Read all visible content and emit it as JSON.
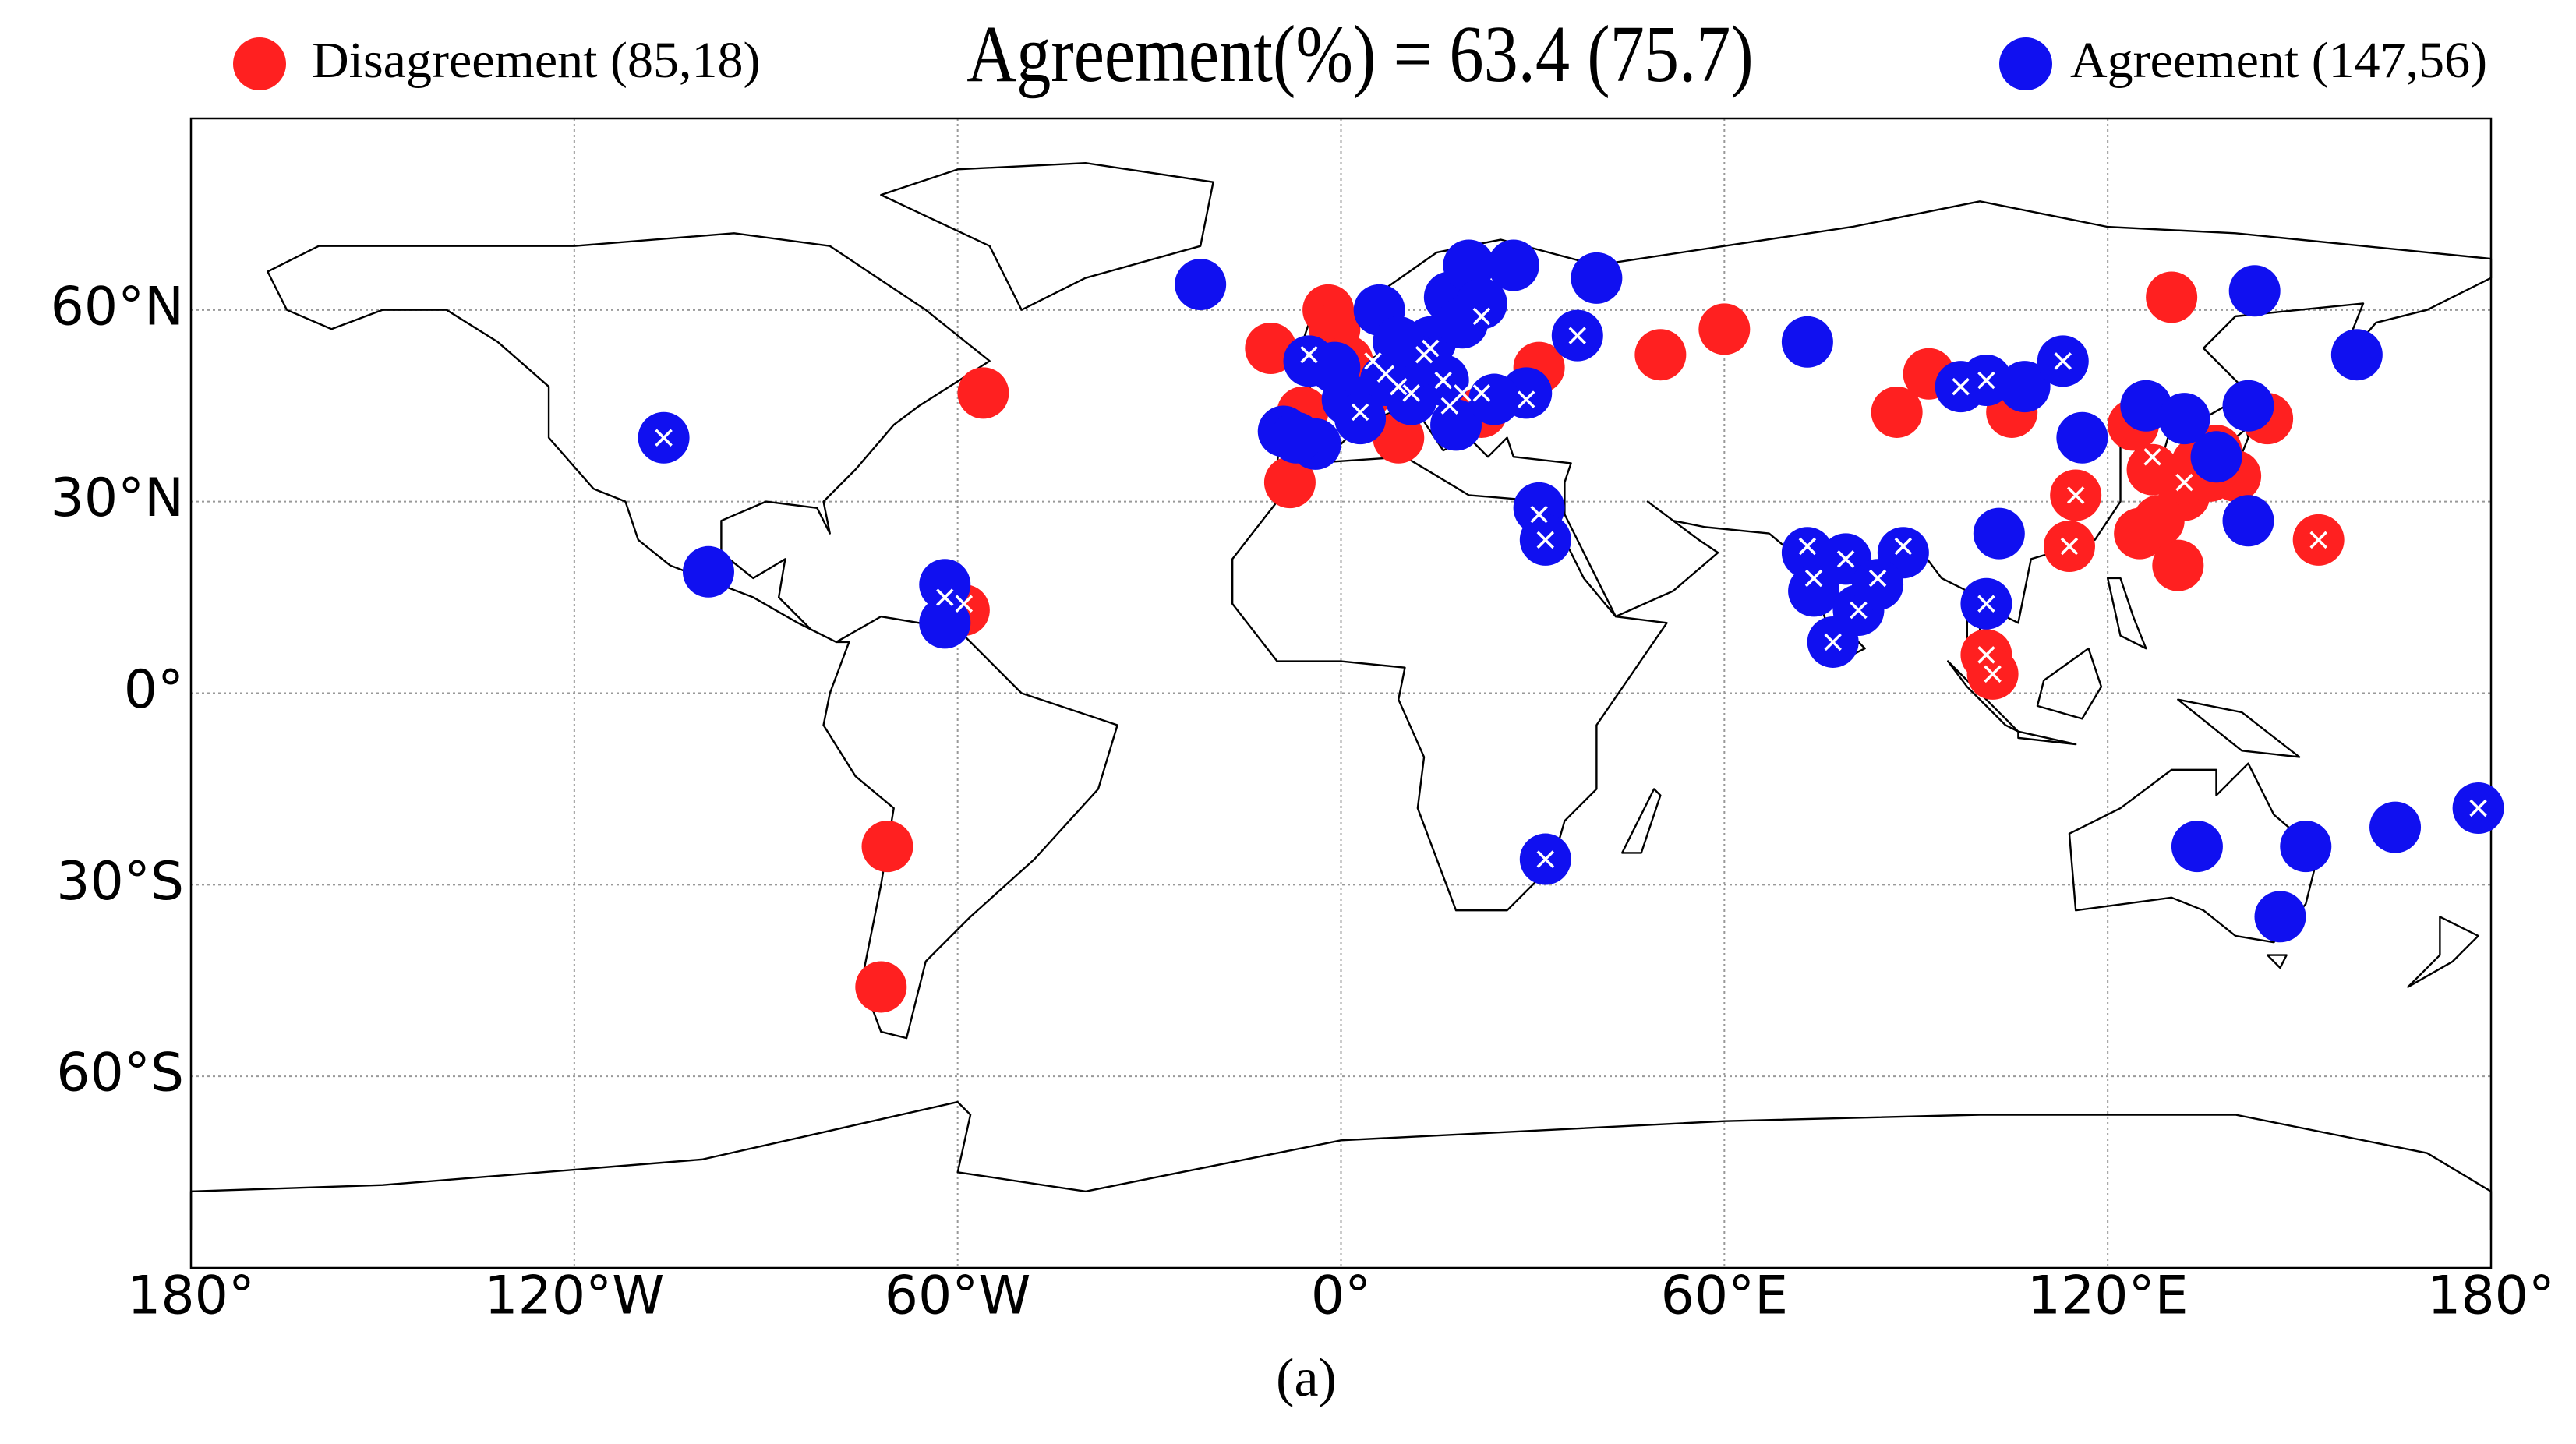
{
  "chart_data": {
    "type": "scatter",
    "title": "Agreement(%) = 63.4   (75.7)",
    "caption": "(a)",
    "xlim": [
      -180,
      180
    ],
    "ylim": [
      -90,
      90
    ],
    "xticks": [
      {
        "value": -180,
        "label": "180°"
      },
      {
        "value": -120,
        "label": "120°W"
      },
      {
        "value": -60,
        "label": "60°W"
      },
      {
        "value": 0,
        "label": "0°"
      },
      {
        "value": 60,
        "label": "60°E"
      },
      {
        "value": 120,
        "label": "120°E"
      },
      {
        "value": 180,
        "label": "180°"
      }
    ],
    "yticks": [
      {
        "value": 60,
        "label": "60°N"
      },
      {
        "value": 30,
        "label": "30°N"
      },
      {
        "value": 0,
        "label": "0°"
      },
      {
        "value": -30,
        "label": "30°S"
      },
      {
        "value": -60,
        "label": "60°S"
      }
    ],
    "grid": true,
    "series": [
      {
        "name": "Disagreement (85,18)",
        "color": "#ff2020",
        "marker": "circle",
        "x": [
          -56,
          -59,
          -71,
          -72,
          -8,
          -2,
          -1,
          -11,
          9,
          4,
          -6,
          1,
          22,
          31,
          50,
          60,
          87,
          92,
          105,
          115,
          114,
          101,
          102,
          130,
          124,
          127,
          132,
          125,
          131,
          137,
          145,
          153,
          140,
          136,
          128,
          134
        ],
        "y": [
          47,
          13,
          -24,
          -46,
          33,
          60,
          57,
          54,
          40,
          47,
          44,
          52,
          44,
          51,
          53,
          57,
          44,
          50,
          44,
          31,
          23,
          6,
          3,
          62,
          42,
          35,
          31,
          25,
          20,
          38,
          43,
          24,
          34,
          34,
          27,
          36
        ]
      },
      {
        "name": "Agreement (147,56)",
        "color": "#1010f0",
        "marker": "circle",
        "x": [
          -106,
          -99,
          -62,
          -62,
          -22,
          -5,
          -9,
          -4,
          6,
          14,
          17,
          20,
          22,
          27,
          7,
          11,
          16,
          18,
          29,
          31,
          32,
          37,
          40,
          32,
          73,
          73,
          74,
          79,
          81,
          77,
          88,
          84,
          97,
          101,
          107,
          113,
          116,
          103,
          101,
          126,
          132,
          143,
          142,
          142,
          137,
          159,
          134,
          151,
          147,
          165,
          178,
          1,
          -1,
          -7,
          3,
          12,
          24,
          19,
          9
        ],
        "y": [
          40,
          19,
          17,
          11,
          64,
          52,
          41,
          39,
          60,
          55,
          62,
          67,
          61,
          67,
          49,
          46,
          49,
          42,
          47,
          29,
          24,
          56,
          65,
          -26,
          55,
          22,
          16,
          21,
          13,
          8,
          22,
          17,
          48,
          49,
          48,
          52,
          40,
          25,
          14,
          45,
          43,
          63,
          27,
          45,
          37,
          53,
          -24,
          -24,
          -35,
          -21,
          -18,
          46,
          51,
          40,
          43,
          52,
          46,
          58,
          55
        ]
      },
      {
        "color": "#ffffff",
        "marker": "x",
        "x": [
          -59,
          22,
          115,
          114,
          101,
          102,
          127,
          132,
          153,
          -106,
          -62,
          -5,
          14,
          22,
          7,
          11,
          16,
          29,
          31,
          32,
          37,
          32,
          73,
          74,
          79,
          81,
          77,
          88,
          84,
          97,
          101,
          113,
          101,
          178,
          5,
          9,
          19,
          3,
          13,
          17
        ],
        "y": [
          14,
          47,
          31,
          23,
          6,
          3,
          37,
          33,
          24,
          40,
          15,
          53,
          54,
          59,
          50,
          47,
          49,
          46,
          28,
          24,
          56,
          -26,
          23,
          18,
          21,
          13,
          8,
          23,
          18,
          48,
          49,
          52,
          14,
          -18,
          52,
          48,
          47,
          44,
          53,
          45
        ]
      }
    ],
    "legend": "top"
  }
}
